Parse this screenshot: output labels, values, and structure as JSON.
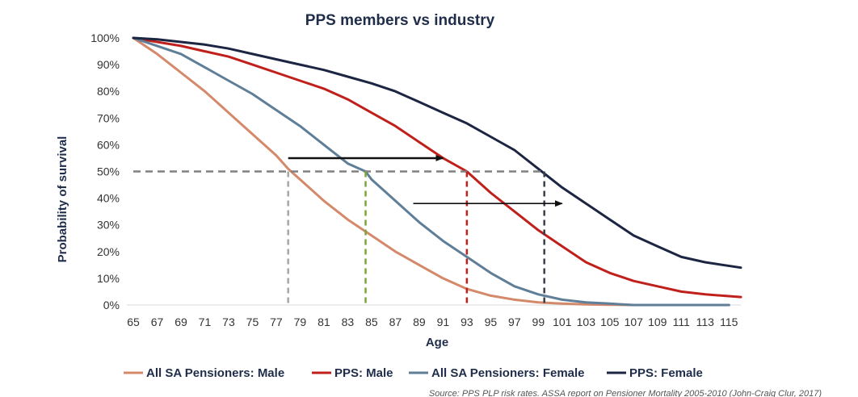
{
  "chart_data": {
    "type": "line",
    "title": "PPS members vs industry",
    "xlabel": "Age",
    "ylabel": "Probability of survival",
    "xlim": [
      65,
      116
    ],
    "ylim": [
      0,
      100
    ],
    "y_tick_labels": [
      "0%",
      "10%",
      "20%",
      "30%",
      "40%",
      "50%",
      "60%",
      "70%",
      "80%",
      "90%",
      "100%"
    ],
    "x_tick_labels": [
      "65",
      "67",
      "69",
      "71",
      "73",
      "75",
      "77",
      "79",
      "81",
      "83",
      "85",
      "87",
      "89",
      "91",
      "93",
      "95",
      "97",
      "99",
      "101",
      "103",
      "105",
      "107",
      "109",
      "111",
      "113",
      "115"
    ],
    "series": [
      {
        "name": "All SA Pensioners: Male",
        "color": "#d4896a",
        "x": [
          65,
          67,
          69,
          71,
          73,
          75,
          77,
          78,
          79,
          81,
          83,
          85,
          87,
          89,
          91,
          93,
          95,
          97,
          99,
          101,
          103,
          105,
          107,
          110,
          115
        ],
        "y": [
          100,
          94,
          87,
          80,
          72,
          64,
          56,
          51,
          47,
          39,
          32,
          26,
          20,
          15,
          10,
          6,
          3.5,
          2,
          1,
          0.5,
          0.2,
          0.1,
          0,
          0,
          0
        ]
      },
      {
        "name": "PPS: Male",
        "color": "#c0201b",
        "x": [
          65,
          67,
          69,
          71,
          73,
          75,
          77,
          79,
          81,
          83,
          85,
          87,
          89,
          91,
          93,
          95,
          97,
          99,
          101,
          103,
          105,
          107,
          109,
          111,
          113,
          116
        ],
        "y": [
          100,
          98.5,
          97,
          95,
          93,
          90,
          87,
          84,
          81,
          77,
          72,
          67,
          61,
          55,
          50,
          42,
          35,
          28,
          22,
          16,
          12,
          9,
          7,
          5,
          4,
          3
        ]
      },
      {
        "name": "All SA Pensioners: Female",
        "color": "#5f7e97",
        "x": [
          65,
          67,
          69,
          71,
          73,
          75,
          77,
          79,
          81,
          83,
          84.5,
          85,
          87,
          89,
          91,
          93,
          95,
          97,
          99,
          101,
          103,
          105,
          107,
          110,
          115
        ],
        "y": [
          100,
          97,
          94,
          89,
          84,
          79,
          73,
          67,
          60,
          53,
          50,
          47,
          39,
          31,
          24,
          18,
          12,
          7,
          4,
          2,
          1,
          0.5,
          0,
          0,
          0
        ]
      },
      {
        "name": "PPS: Female",
        "color": "#1c2541",
        "x": [
          65,
          67,
          69,
          71,
          73,
          75,
          77,
          79,
          81,
          83,
          85,
          87,
          89,
          91,
          93,
          95,
          97,
          99,
          101,
          103,
          105,
          107,
          109,
          111,
          113,
          116
        ],
        "y": [
          100,
          99.5,
          98.5,
          97.5,
          96,
          94,
          92,
          90,
          88,
          85.5,
          83,
          80,
          76,
          72,
          68,
          63,
          58,
          51,
          44,
          38,
          32,
          26,
          22,
          18,
          16,
          14
        ]
      }
    ],
    "annotations": {
      "median_reference_y": 50,
      "median_ages": [
        {
          "x": 78,
          "color": "#a6a6a6"
        },
        {
          "x": 84.5,
          "color": "#7aa53a"
        },
        {
          "x": 93,
          "color": "#c0201b"
        },
        {
          "x": 99.5,
          "color": "#3a3f4a"
        }
      ],
      "arrows": [
        {
          "y": 55,
          "x_from": 78,
          "x_to": 91
        },
        {
          "y": 38,
          "x_from": 88.5,
          "x_to": 101
        }
      ]
    },
    "legend_position": "bottom",
    "source": "Source: PPS PLP risk rates. ASSA report on Pensioner Mortality 2005-2010 (John-Craig Clur, 2017)"
  }
}
